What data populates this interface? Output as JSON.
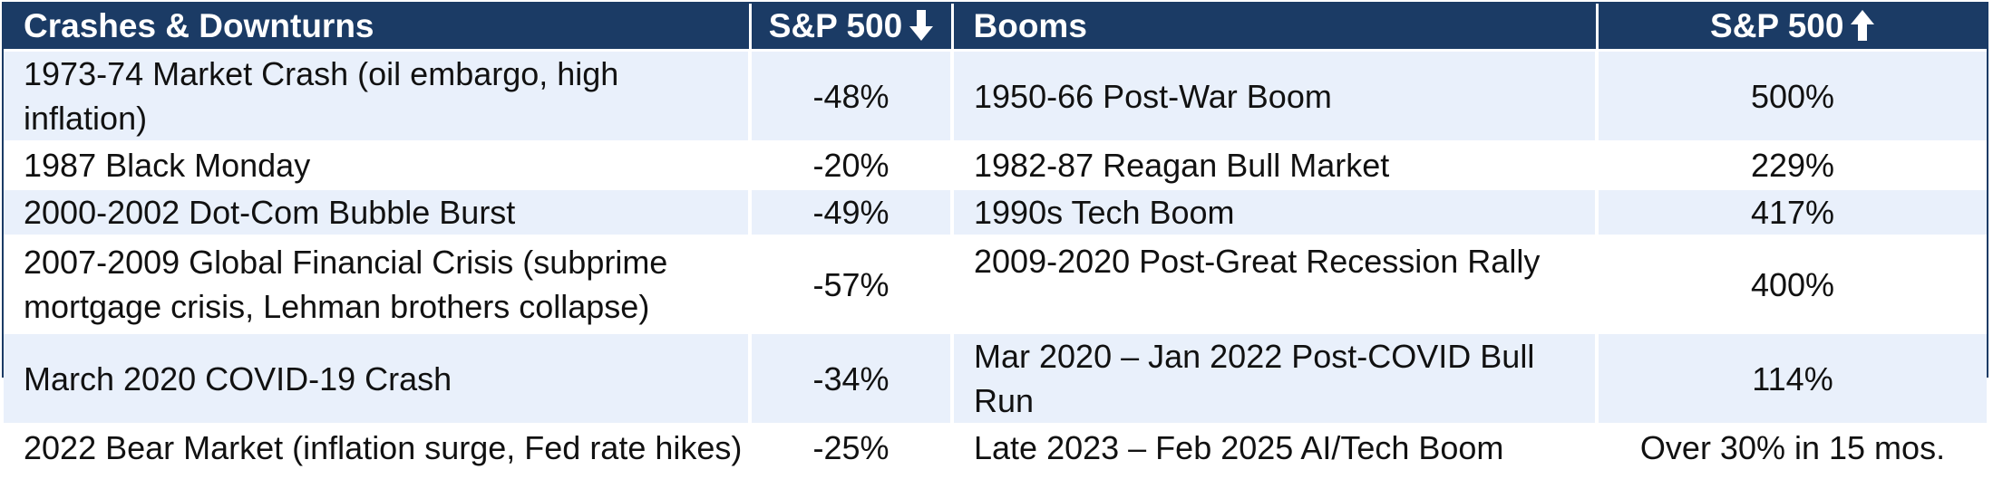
{
  "header": {
    "col1": "Crashes & Downturns",
    "col2": "S&P 500",
    "col3": "Booms",
    "col4": "S&P 500",
    "col2_icon": "arrow-down-icon",
    "col4_icon": "arrow-up-icon"
  },
  "colors": {
    "header_bg": "#1b3b65",
    "shade_row": "#e9f0fb",
    "border": "#1b3b65"
  },
  "rows": [
    {
      "crash": "1973-74 Market Crash (oil embargo, high inflation)",
      "crash_pct": "-48%",
      "boom": "1950-66 Post-War Boom",
      "boom_pct": "500%"
    },
    {
      "crash": "1987 Black Monday",
      "crash_pct": "-20%",
      "boom": "1982-87 Reagan Bull Market",
      "boom_pct": "229%"
    },
    {
      "crash": "2000-2002 Dot-Com Bubble Burst",
      "crash_pct": "-49%",
      "boom": "1990s Tech Boom",
      "boom_pct": "417%"
    },
    {
      "crash": "2007-2009 Global Financial Crisis (subprime mortgage crisis, Lehman brothers collapse)",
      "crash_pct": "-57%",
      "boom": "2009-2020 Post-Great Recession Rally",
      "boom_pct": "400%"
    },
    {
      "crash": "March 2020 COVID-19 Crash",
      "crash_pct": "-34%",
      "boom": "Mar 2020 – Jan 2022 Post-COVID Bull Run",
      "boom_pct": "114%"
    },
    {
      "crash": "2022 Bear Market (inflation surge, Fed rate hikes)",
      "crash_pct": "-25%",
      "boom": "Late 2023 – Feb 2025 AI/Tech Boom",
      "boom_pct": "Over 30% in 15 mos."
    }
  ]
}
